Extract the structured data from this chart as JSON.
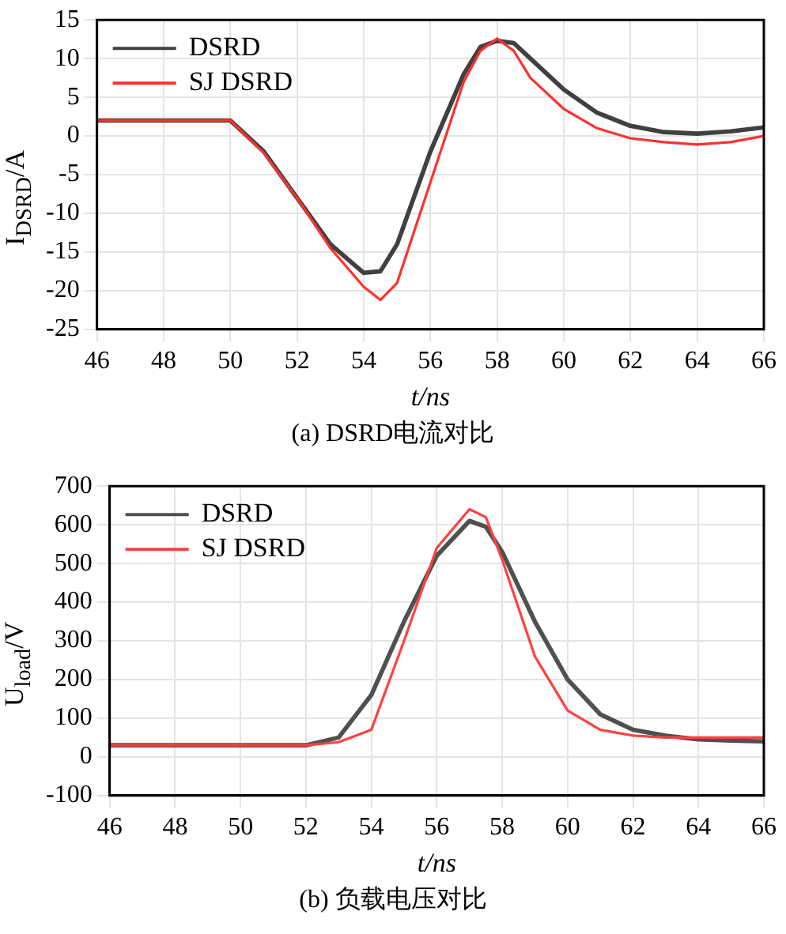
{
  "chart_data": [
    {
      "type": "line",
      "title": "(a)  DSRD电流对比",
      "xlabel": "t/ns",
      "ylabel": "I$_{DSRD}$/A",
      "xlim": [
        46,
        66
      ],
      "xticks": [
        46,
        48,
        50,
        52,
        54,
        56,
        58,
        60,
        62,
        64,
        66
      ],
      "ylim": [
        -25,
        15
      ],
      "yticks": [
        -25,
        -20,
        -15,
        -10,
        -5,
        0,
        5,
        10,
        15
      ],
      "grid": true,
      "legend": "top left",
      "marker": "none",
      "line_style": "solid",
      "series": [
        {
          "name": "DSRD",
          "color": "#404040",
          "x": [
            46,
            48,
            50,
            51,
            52,
            53,
            54,
            54.5,
            55,
            56,
            57,
            57.5,
            58,
            58.5,
            59,
            60,
            61,
            62,
            63,
            64,
            65,
            66
          ],
          "values": [
            2,
            2,
            2,
            -2,
            -8,
            -14,
            -17.7,
            -17.5,
            -14,
            -2,
            8,
            11.5,
            12.3,
            12,
            10,
            6,
            3,
            1.3,
            0.5,
            0.3,
            0.6,
            1.1
          ]
        },
        {
          "name": "SJ DSRD",
          "color": "#ff3030",
          "x": [
            46,
            48,
            50,
            51,
            52,
            53,
            54,
            54.5,
            55,
            56,
            57,
            57.5,
            58,
            58.5,
            59,
            60,
            61,
            62,
            63,
            64,
            65,
            66
          ],
          "values": [
            2,
            2,
            2,
            -2.2,
            -8,
            -14.5,
            -19.5,
            -21.2,
            -19,
            -6,
            7,
            11,
            12.6,
            11,
            7.5,
            3.5,
            1,
            -0.3,
            -0.8,
            -1.1,
            -0.8,
            0
          ]
        }
      ]
    },
    {
      "type": "line",
      "title": "(b)  负载电压对比",
      "xlabel": "t/ns",
      "ylabel": "U$_{load}$/V",
      "xlim": [
        46,
        66
      ],
      "xticks": [
        46,
        48,
        50,
        52,
        54,
        56,
        58,
        60,
        62,
        64,
        66
      ],
      "ylim": [
        -100,
        700
      ],
      "yticks": [
        -100,
        0,
        100,
        200,
        300,
        400,
        500,
        600,
        700
      ],
      "grid": true,
      "legend": "top left",
      "marker": "none",
      "line_style": "solid",
      "series": [
        {
          "name": "DSRD",
          "color": "#505050",
          "x": [
            46,
            48,
            50,
            52,
            53,
            54,
            55,
            56,
            57,
            57.5,
            58,
            59,
            60,
            61,
            62,
            63,
            64,
            65,
            66
          ],
          "values": [
            30,
            30,
            30,
            30,
            50,
            160,
            350,
            520,
            610,
            595,
            530,
            350,
            200,
            110,
            70,
            55,
            45,
            42,
            40
          ]
        },
        {
          "name": "SJ DSRD",
          "color": "#ff4040",
          "x": [
            46,
            48,
            50,
            52,
            53,
            54,
            55,
            56,
            57,
            57.5,
            58,
            59,
            60,
            61,
            62,
            63,
            64,
            65,
            66
          ],
          "values": [
            30,
            30,
            30,
            30,
            38,
            70,
            300,
            540,
            640,
            620,
            510,
            260,
            120,
            70,
            55,
            50,
            50,
            50,
            50
          ]
        }
      ]
    }
  ]
}
